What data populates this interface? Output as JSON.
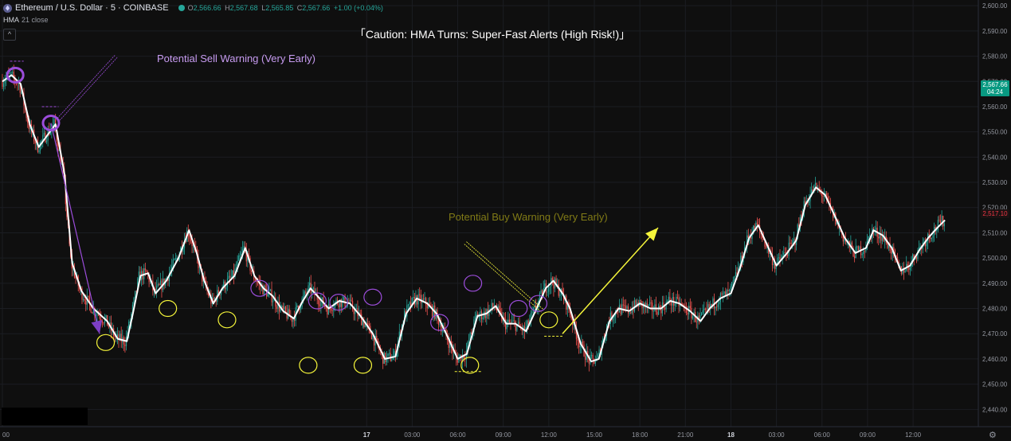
{
  "header": {
    "symbol": "Ethereum / U.S. Dollar · 5 · COINBASE",
    "o_label": "O",
    "o_value": "2,566.66",
    "h_label": "H",
    "h_value": "2,567.68",
    "l_label": "L",
    "l_value": "2,565.85",
    "c_label": "C",
    "c_value": "2,567.66",
    "change": "+1.00 (+0.04%)",
    "indicator_name": "HMA",
    "indicator_params": "21 close",
    "collapse_glyph": "^"
  },
  "price_tags": {
    "current": "2,567.66",
    "countdown": "04:24",
    "hma": "2,517.10"
  },
  "colors": {
    "bull": "#26a69a",
    "bear": "#ef5350",
    "hma": "#ffffff",
    "sell_annotation": "#9c4ddb",
    "buy_annotation": "#f5f53a",
    "sell_text": "#c79bf0",
    "buy_text": "#807a16",
    "background": "#0f0f0f"
  },
  "chart_data": {
    "type": "candlestick",
    "title": "Caution: HMA Turns: Super-Fast Alerts (High Risk!)",
    "title_brackets": [
      "「",
      "」"
    ],
    "y_ticks": [
      "2,600.00",
      "2,590.00",
      "2,580.00",
      "2,570.00",
      "2,560.00",
      "2,550.00",
      "2,540.00",
      "2,530.00",
      "2,520.00",
      "2,510.00",
      "2,500.00",
      "2,490.00",
      "2,480.00",
      "2,470.00",
      "2,460.00",
      "2,450.00",
      "2,440.00"
    ],
    "y_tick_values": [
      2600,
      2590,
      2580,
      2570,
      2560,
      2550,
      2540,
      2530,
      2520,
      2510,
      2500,
      2490,
      2480,
      2470,
      2460,
      2450,
      2440
    ],
    "ylim": [
      2436,
      2601
    ],
    "x_ticks": [
      "00",
      "17",
      "03:00",
      "06:00",
      "09:00",
      "12:00",
      "15:00",
      "18:00",
      "21:00",
      "18",
      "03:00",
      "06:00",
      "09:00",
      "12:00"
    ],
    "x_tick_hours": [
      0,
      24,
      27,
      30,
      33,
      36,
      39,
      42,
      45,
      48,
      51,
      54,
      57,
      60
    ],
    "x_bold_ticks": [
      "17",
      "18"
    ],
    "xlim_hours": [
      0,
      64.3
    ],
    "hma_line": [
      [
        0,
        2570
      ],
      [
        0.6,
        2572.5
      ],
      [
        1.2,
        2569
      ],
      [
        1.8,
        2553
      ],
      [
        2.4,
        2544
      ],
      [
        3.0,
        2549
      ],
      [
        3.5,
        2553
      ],
      [
        4.1,
        2533
      ],
      [
        4.6,
        2498
      ],
      [
        5.2,
        2487
      ],
      [
        6.0,
        2480
      ],
      [
        6.9,
        2475
      ],
      [
        7.6,
        2468
      ],
      [
        8.2,
        2467
      ],
      [
        8.6,
        2478
      ],
      [
        9.1,
        2493
      ],
      [
        9.6,
        2494
      ],
      [
        10.1,
        2486
      ],
      [
        10.8,
        2491
      ],
      [
        11.6,
        2500
      ],
      [
        12.3,
        2511
      ],
      [
        12.8,
        2502
      ],
      [
        13.3,
        2491
      ],
      [
        13.9,
        2482
      ],
      [
        14.5,
        2488
      ],
      [
        15.3,
        2493
      ],
      [
        16.0,
        2504
      ],
      [
        16.6,
        2493
      ],
      [
        17.2,
        2488
      ],
      [
        17.8,
        2485
      ],
      [
        18.5,
        2479
      ],
      [
        19.2,
        2476
      ],
      [
        19.7,
        2482
      ],
      [
        20.3,
        2488
      ],
      [
        20.9,
        2484
      ],
      [
        21.5,
        2480
      ],
      [
        22.2,
        2483
      ],
      [
        22.9,
        2482
      ],
      [
        23.6,
        2477
      ],
      [
        24.4,
        2470
      ],
      [
        25.2,
        2460
      ],
      [
        25.9,
        2461
      ],
      [
        26.6,
        2478
      ],
      [
        27.3,
        2484
      ],
      [
        28.0,
        2482
      ],
      [
        28.6,
        2478
      ],
      [
        29.4,
        2468
      ],
      [
        30.0,
        2460
      ],
      [
        30.6,
        2462
      ],
      [
        31.3,
        2477
      ],
      [
        31.9,
        2478
      ],
      [
        32.5,
        2481
      ],
      [
        33.2,
        2474
      ],
      [
        33.8,
        2474
      ],
      [
        34.5,
        2471
      ],
      [
        35.2,
        2480
      ],
      [
        35.8,
        2488
      ],
      [
        36.3,
        2491
      ],
      [
        36.9,
        2486
      ],
      [
        37.4,
        2480
      ],
      [
        38.1,
        2466
      ],
      [
        38.8,
        2459
      ],
      [
        39.3,
        2460
      ],
      [
        40.0,
        2475
      ],
      [
        40.6,
        2480
      ],
      [
        41.3,
        2479
      ],
      [
        42.0,
        2482
      ],
      [
        42.7,
        2480
      ],
      [
        43.4,
        2480
      ],
      [
        44.0,
        2483
      ],
      [
        44.6,
        2482
      ],
      [
        45.3,
        2479
      ],
      [
        46.0,
        2475
      ],
      [
        46.6,
        2480
      ],
      [
        47.3,
        2484
      ],
      [
        48.0,
        2486
      ],
      [
        48.6,
        2496
      ],
      [
        49.2,
        2508
      ],
      [
        49.8,
        2513
      ],
      [
        50.4,
        2505
      ],
      [
        51.0,
        2497
      ],
      [
        51.7,
        2502
      ],
      [
        52.3,
        2507
      ],
      [
        52.9,
        2521
      ],
      [
        53.6,
        2528
      ],
      [
        54.2,
        2525
      ],
      [
        54.9,
        2516
      ],
      [
        55.5,
        2508
      ],
      [
        56.2,
        2502
      ],
      [
        56.9,
        2504
      ],
      [
        57.4,
        2511
      ],
      [
        58.0,
        2509
      ],
      [
        58.6,
        2504
      ],
      [
        59.2,
        2495
      ],
      [
        59.8,
        2497
      ],
      [
        60.4,
        2503
      ],
      [
        61.0,
        2508
      ],
      [
        61.6,
        2512
      ],
      [
        62.1,
        2515
      ]
    ],
    "candle_interval_hours": 0.0833,
    "candle_count": 746,
    "ohlc_last": {
      "o": 2566.66,
      "h": 2567.68,
      "l": 2565.85,
      "c": 2567.66
    },
    "hma_series_name": "HMA 21 close",
    "annotations": {
      "sell_label": "Potential Sell Warning (Very Early)",
      "buy_label": "Potential Buy Warning (Very Early)",
      "sell_circles": [
        [
          0.85,
          2572.5
        ],
        [
          3.2,
          2553.5
        ],
        [
          16.95,
          2488
        ],
        [
          20.75,
          2483
        ],
        [
          22.15,
          2482.5
        ],
        [
          24.4,
          2484.5
        ],
        [
          28.8,
          2474.5
        ],
        [
          31.0,
          2490
        ],
        [
          34.0,
          2480
        ],
        [
          35.3,
          2482
        ]
      ],
      "buy_circles": [
        [
          6.8,
          2466.5
        ],
        [
          10.9,
          2480
        ],
        [
          14.8,
          2475.5
        ],
        [
          20.15,
          2457.5
        ],
        [
          23.75,
          2457.5
        ],
        [
          30.8,
          2457.5
        ],
        [
          36.0,
          2475.5
        ]
      ],
      "sell_dashes": [
        [
          0.5,
          1.4,
          2578
        ],
        [
          2.6,
          3.7,
          2560
        ]
      ],
      "buy_dashes": [
        [
          29.8,
          31.6,
          2455
        ],
        [
          35.7,
          36.9,
          2469
        ]
      ],
      "sell_arrow_line": [
        [
          3.2,
          2553.5
        ],
        [
          6.4,
          2470
        ]
      ],
      "sell_pointer_line": [
        [
          3.7,
          2555
        ],
        [
          7.5,
          2580
        ]
      ],
      "buy_pointer_line": [
        [
          30.5,
          2506
        ],
        [
          35.6,
          2479
        ]
      ],
      "buy_trend_arrow": [
        [
          36.9,
          2470
        ],
        [
          43.2,
          2512
        ]
      ]
    }
  }
}
